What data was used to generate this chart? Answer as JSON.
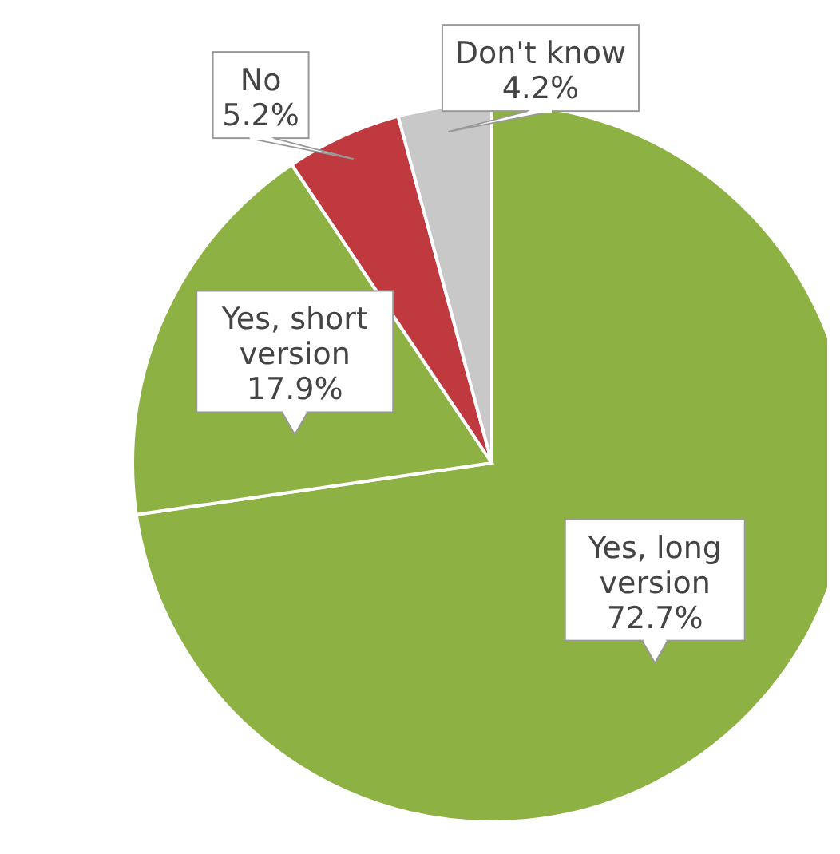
{
  "chart_data": {
    "type": "pie",
    "categories": [
      "Yes, long version",
      "Yes, short version",
      "No",
      "Don't know"
    ],
    "values": [
      72.7,
      17.9,
      5.2,
      4.2
    ],
    "colors": [
      "#8db243",
      "#8db243",
      "#c0393f",
      "#c8c8c8"
    ],
    "value_labels": [
      "72.7%",
      "17.9%",
      "5.2%",
      "4.2%"
    ]
  }
}
